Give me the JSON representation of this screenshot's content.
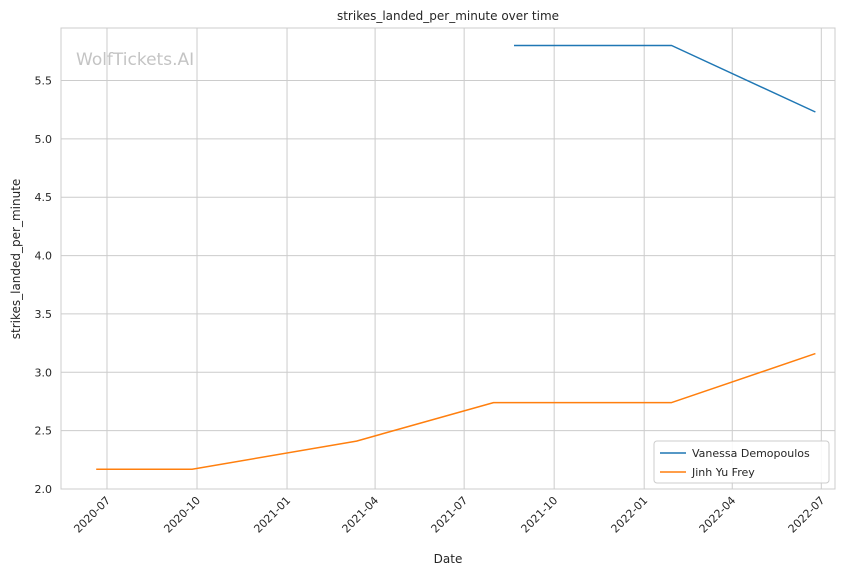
{
  "watermark": "WolfTickets.AI",
  "chart_data": {
    "type": "line",
    "title": "strikes_landed_per_minute over time",
    "xlabel": "Date",
    "ylabel": "strikes_landed_per_minute",
    "ylim": [
      2.0,
      5.95
    ],
    "xlim": [
      "2020-05-15",
      "2022-07-15"
    ],
    "grid": true,
    "legend_position": "lower-right",
    "x_ticks": [
      "2020-07",
      "2020-10",
      "2021-01",
      "2021-04",
      "2021-07",
      "2021-10",
      "2022-01",
      "2022-04",
      "2022-07"
    ],
    "y_ticks": [
      "2.0",
      "2.5",
      "3.0",
      "3.5",
      "4.0",
      "4.5",
      "5.0",
      "5.5"
    ],
    "series": [
      {
        "name": "Vanessa Demopoulos",
        "color": "#1f77b4",
        "points": [
          {
            "x": "2021-08-21",
            "y": 5.8
          },
          {
            "x": "2022-01-29",
            "y": 5.8
          },
          {
            "x": "2022-06-25",
            "y": 5.23
          }
        ]
      },
      {
        "name": "Jinh Yu Frey",
        "color": "#ff7f0e",
        "points": [
          {
            "x": "2020-06-20",
            "y": 2.17
          },
          {
            "x": "2020-09-26",
            "y": 2.17
          },
          {
            "x": "2021-03-13",
            "y": 2.41
          },
          {
            "x": "2021-07-31",
            "y": 2.74
          },
          {
            "x": "2022-01-29",
            "y": 2.74
          },
          {
            "x": "2022-06-25",
            "y": 3.16
          }
        ]
      }
    ]
  }
}
